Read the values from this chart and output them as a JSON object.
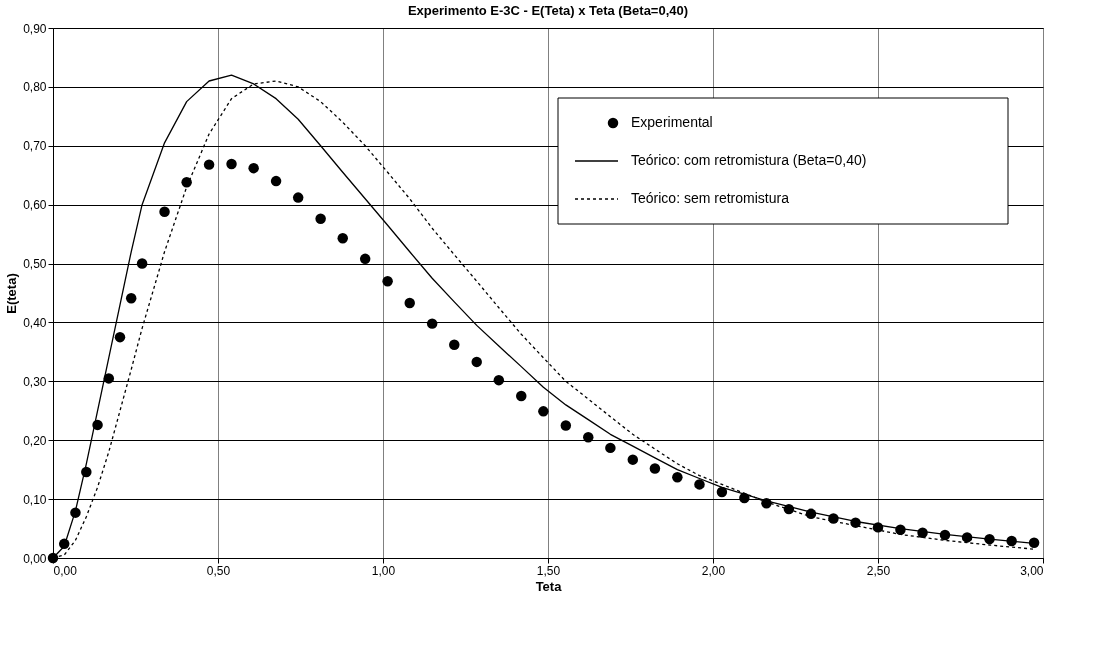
{
  "chart_data": {
    "type": "scatter",
    "title": "Experimento E-3C  -  E(Teta) x Teta (Beta=0,40)",
    "xlabel": "Teta",
    "ylabel": "E(teta)",
    "xlim": [
      0,
      3
    ],
    "ylim": [
      0,
      0.9
    ],
    "xticks": [
      {
        "value": 0,
        "label": "0,00"
      },
      {
        "value": 0.5,
        "label": "0,50"
      },
      {
        "value": 1,
        "label": "1,00"
      },
      {
        "value": 1.5,
        "label": "1,50"
      },
      {
        "value": 2,
        "label": "2,00"
      },
      {
        "value": 2.5,
        "label": "2,50"
      },
      {
        "value": 3,
        "label": "3,00"
      }
    ],
    "yticks": [
      {
        "value": 0,
        "label": "0,00"
      },
      {
        "value": 0.1,
        "label": "0,10"
      },
      {
        "value": 0.2,
        "label": "0,20"
      },
      {
        "value": 0.3,
        "label": "0,30"
      },
      {
        "value": 0.4,
        "label": "0,40"
      },
      {
        "value": 0.5,
        "label": "0,50"
      },
      {
        "value": 0.6,
        "label": "0,60"
      },
      {
        "value": 0.7,
        "label": "0,70"
      },
      {
        "value": 0.8,
        "label": "0,80"
      },
      {
        "value": 0.9,
        "label": "0,90"
      }
    ],
    "grid": true,
    "legend": "top right",
    "series": [
      {
        "name": "Experimental",
        "type": "scatter",
        "marker": "circle",
        "color": "#000000",
        "x": [
          0,
          0.034,
          0.068,
          0.101,
          0.135,
          0.169,
          0.203,
          0.237,
          0.27,
          0.338,
          0.405,
          0.473,
          0.541,
          0.608,
          0.676,
          0.743,
          0.811,
          0.878,
          0.946,
          1.014,
          1.081,
          1.149,
          1.216,
          1.284,
          1.351,
          1.419,
          1.486,
          1.554,
          1.622,
          1.689,
          1.757,
          1.824,
          1.892,
          1.959,
          2.027,
          2.095,
          2.162,
          2.23,
          2.297,
          2.365,
          2.432,
          2.5,
          2.568,
          2.635,
          2.703,
          2.77,
          2.838,
          2.905,
          2.973
        ],
        "values": [
          0,
          0.024,
          0.077,
          0.146,
          0.226,
          0.305,
          0.375,
          0.441,
          0.5,
          0.588,
          0.638,
          0.668,
          0.669,
          0.662,
          0.64,
          0.612,
          0.576,
          0.543,
          0.508,
          0.47,
          0.433,
          0.398,
          0.362,
          0.333,
          0.302,
          0.275,
          0.249,
          0.225,
          0.205,
          0.187,
          0.167,
          0.152,
          0.137,
          0.125,
          0.112,
          0.102,
          0.093,
          0.083,
          0.075,
          0.067,
          0.06,
          0.052,
          0.048,
          0.043,
          0.039,
          0.035,
          0.032,
          0.029,
          0.026
        ]
      },
      {
        "name": "Teórico: com retromistura (Beta=0,40)",
        "type": "line",
        "line_style": "solid",
        "color": "#000000",
        "x": [
          0,
          0.034,
          0.068,
          0.101,
          0.135,
          0.169,
          0.203,
          0.237,
          0.27,
          0.338,
          0.405,
          0.473,
          0.541,
          0.608,
          0.676,
          0.743,
          0.811,
          0.878,
          0.946,
          1.014,
          1.081,
          1.149,
          1.216,
          1.284,
          1.351,
          1.419,
          1.486,
          1.554,
          1.622,
          1.689,
          1.757,
          1.824,
          1.892,
          1.959,
          2.027,
          2.162,
          2.297,
          2.432,
          2.568,
          2.703,
          2.838,
          2.973
        ],
        "values": [
          0,
          0.02,
          0.08,
          0.16,
          0.25,
          0.34,
          0.43,
          0.52,
          0.6,
          0.705,
          0.775,
          0.81,
          0.82,
          0.805,
          0.78,
          0.745,
          0.7,
          0.655,
          0.61,
          0.565,
          0.52,
          0.475,
          0.435,
          0.395,
          0.36,
          0.325,
          0.29,
          0.26,
          0.235,
          0.21,
          0.19,
          0.17,
          0.15,
          0.135,
          0.12,
          0.097,
          0.078,
          0.062,
          0.05,
          0.04,
          0.032,
          0.025
        ]
      },
      {
        "name": "Teórico: sem retromistura",
        "type": "line",
        "line_style": "dotted",
        "color": "#000000",
        "x": [
          0,
          0.034,
          0.068,
          0.101,
          0.135,
          0.169,
          0.203,
          0.237,
          0.27,
          0.338,
          0.405,
          0.473,
          0.541,
          0.608,
          0.676,
          0.743,
          0.811,
          0.878,
          0.946,
          1.014,
          1.081,
          1.149,
          1.216,
          1.284,
          1.351,
          1.419,
          1.486,
          1.554,
          1.622,
          1.689,
          1.757,
          1.824,
          1.892,
          1.959,
          2.027,
          2.162,
          2.297,
          2.432,
          2.568,
          2.703,
          2.838,
          2.973
        ],
        "values": [
          0,
          0.005,
          0.03,
          0.07,
          0.12,
          0.18,
          0.25,
          0.32,
          0.39,
          0.52,
          0.63,
          0.72,
          0.78,
          0.805,
          0.81,
          0.8,
          0.775,
          0.74,
          0.7,
          0.655,
          0.61,
          0.56,
          0.515,
          0.47,
          0.425,
          0.38,
          0.34,
          0.3,
          0.27,
          0.24,
          0.21,
          0.185,
          0.16,
          0.14,
          0.125,
          0.095,
          0.07,
          0.055,
          0.04,
          0.03,
          0.022,
          0.015
        ]
      }
    ]
  }
}
